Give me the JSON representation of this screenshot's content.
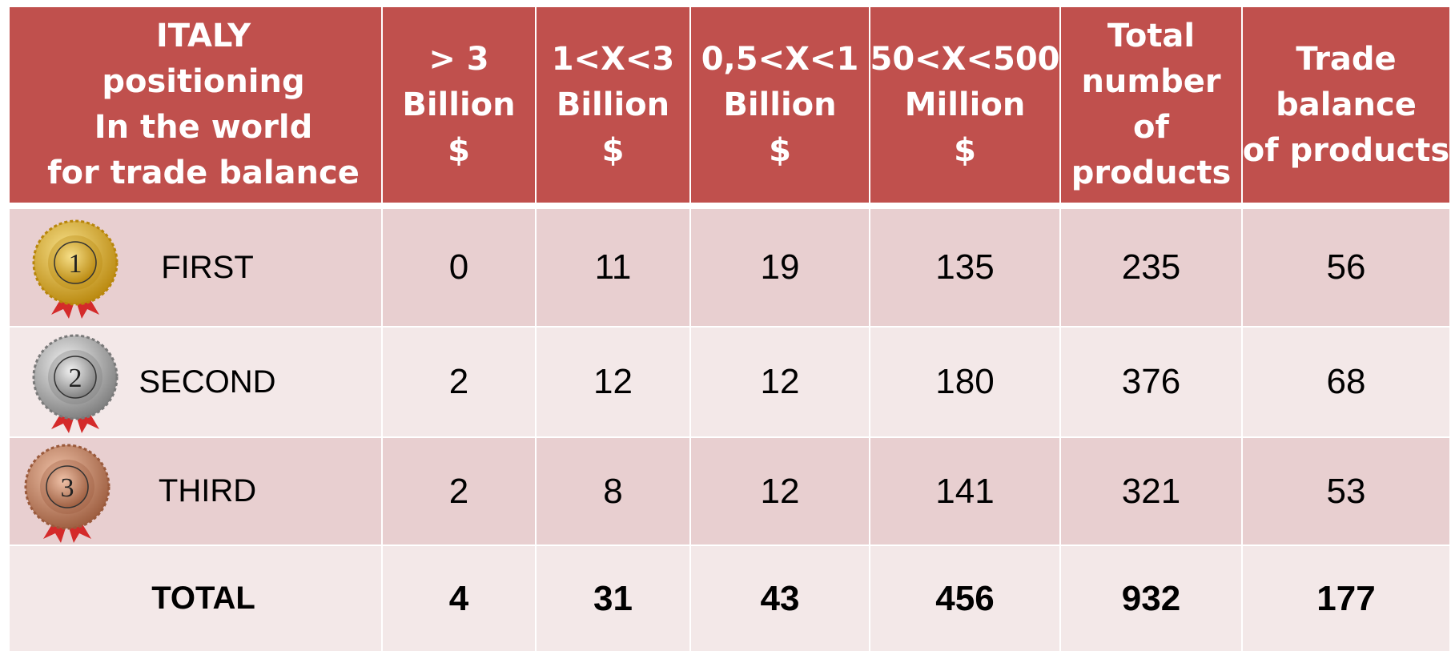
{
  "table": {
    "header": [
      [
        "ITALY",
        "positioning",
        "In the world",
        "for trade balance"
      ],
      [
        "> 3",
        "Billion",
        "$"
      ],
      [
        "1<X<3",
        "Billion",
        "$"
      ],
      [
        "0,5<X<1",
        "Billion",
        "$"
      ],
      [
        "50<X<500",
        "Million",
        "$"
      ],
      [
        "Total",
        "number",
        "of",
        "products"
      ],
      [
        "Trade",
        "balance",
        "of products"
      ]
    ],
    "rows": [
      {
        "medal": "1",
        "cells": [
          "FIRST",
          "0",
          "11",
          "19",
          "135",
          "235",
          "56"
        ]
      },
      {
        "medal": "2",
        "cells": [
          "SECOND",
          "2",
          "12",
          "12",
          "180",
          "376",
          "68"
        ]
      },
      {
        "medal": "3",
        "cells": [
          "THIRD",
          "2",
          "8",
          "12",
          "141",
          "321",
          "53"
        ]
      }
    ],
    "total": [
      "TOTAL",
      "4",
      "31",
      "43",
      "456",
      "932",
      "177"
    ]
  }
}
